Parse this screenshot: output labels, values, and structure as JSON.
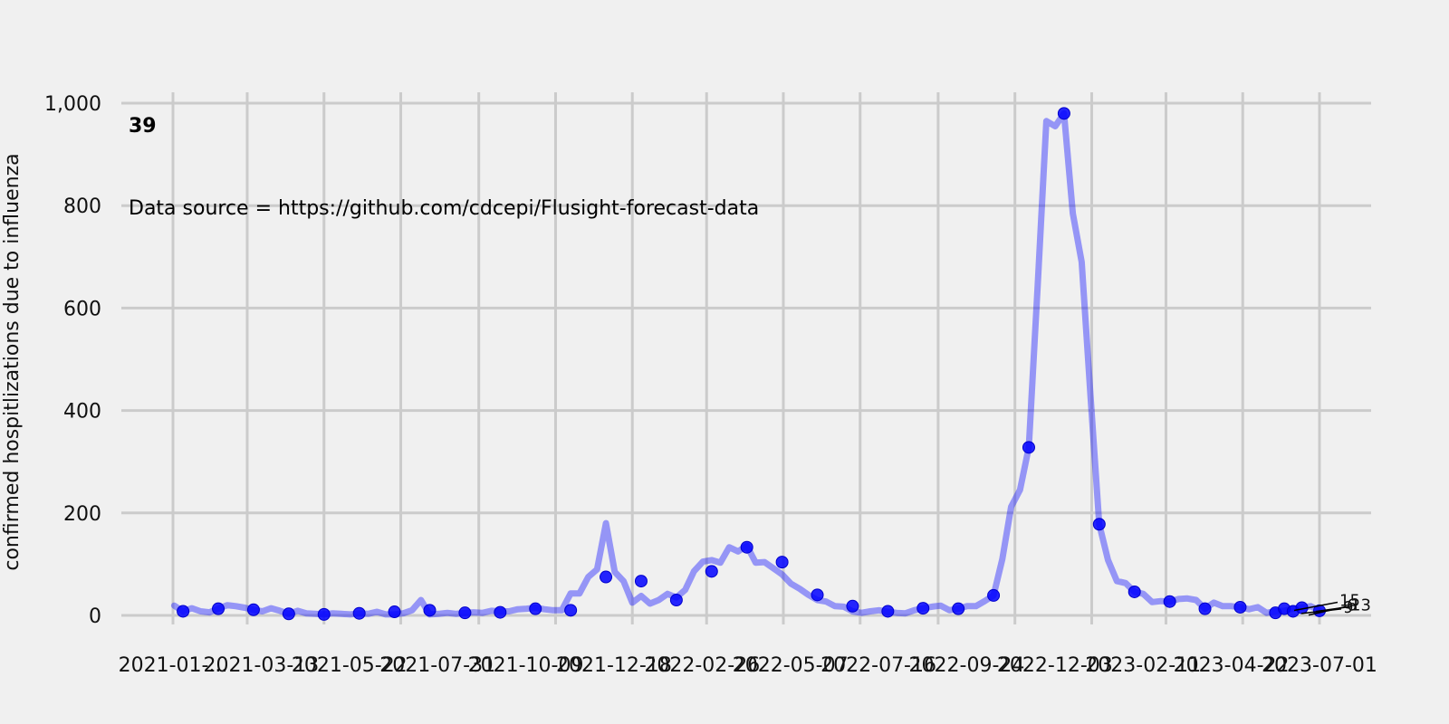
{
  "chart_data": {
    "type": "line",
    "panel_label": "39",
    "source_note": "Data source = https://github.com/cdcepi/Flusight-forecast-data",
    "ylabel": "confirmed hospitlizations due to influenza",
    "xlabel": "",
    "ylim": [
      0,
      1000
    ],
    "yticks": [
      0,
      200,
      400,
      600,
      800,
      1000
    ],
    "ytick_labels": [
      "0",
      "200",
      "400",
      "600",
      "800",
      "1,000"
    ],
    "xticks": [
      "2021-01-01",
      "2021-03-01",
      "2021-05-01",
      "2021-07-01",
      "2021-09-01",
      "2021-11-01",
      "2022-01-01",
      "2022-03-01",
      "2022-05-01",
      "2022-07-01",
      "2022-09-01",
      "2022-11-01",
      "2023-01-01",
      "2023-03-01",
      "2023-05-01",
      "2023-07-01"
    ],
    "xtick_labels": [
      "2021-01",
      "2021-03",
      "2021-05",
      "2021-07",
      "2021-09",
      "2021-11",
      "2022-01",
      "2022-03",
      "2022-05",
      "2022-07",
      "2022-09",
      "2022-11",
      "2023-01",
      "2023-03",
      "2023-05",
      "2023-07"
    ],
    "xtick_display": [
      "2021-01-...",
      "2021-03-13",
      "2021-05-22",
      "2021-07-31",
      "2021-10-09",
      "2021-12-18",
      "2022-02-26",
      "2022-05-07",
      "2022-07-16",
      "2022-09-24",
      "2022-12-03",
      "2023-02-11",
      "2023-04-22",
      "2023-07-01"
    ],
    "grid": true,
    "series": [
      {
        "color": "#0000ff",
        "x": [
          "2021-01-02",
          "2021-01-09",
          "2021-01-16",
          "2021-01-23",
          "2021-01-30",
          "2021-02-06",
          "2021-02-13",
          "2021-02-20",
          "2021-02-27",
          "2021-03-06",
          "2021-03-13",
          "2021-03-20",
          "2021-03-27",
          "2021-04-03",
          "2021-04-10",
          "2021-04-17",
          "2021-04-24",
          "2021-05-01",
          "2021-05-08",
          "2021-05-15",
          "2021-05-22",
          "2021-05-29",
          "2021-06-05",
          "2021-06-12",
          "2021-06-19",
          "2021-06-26",
          "2021-07-03",
          "2021-07-10",
          "2021-07-17",
          "2021-07-24",
          "2021-07-31",
          "2021-08-07",
          "2021-08-14",
          "2021-08-21",
          "2021-08-28",
          "2021-09-04",
          "2021-09-11",
          "2021-09-18",
          "2021-09-25",
          "2021-10-02",
          "2021-10-09",
          "2021-10-16",
          "2021-10-23",
          "2021-10-30",
          "2021-11-06",
          "2021-11-13",
          "2021-11-20",
          "2021-11-27",
          "2021-12-04",
          "2021-12-11",
          "2021-12-18",
          "2021-12-25",
          "2022-01-01",
          "2022-01-08",
          "2022-01-15",
          "2022-01-22",
          "2022-01-29",
          "2022-02-05",
          "2022-02-12",
          "2022-02-19",
          "2022-02-26",
          "2022-03-05",
          "2022-03-12",
          "2022-03-19",
          "2022-03-26",
          "2022-04-02",
          "2022-04-09",
          "2022-04-16",
          "2022-04-23",
          "2022-04-30",
          "2022-05-07",
          "2022-05-14",
          "2022-05-21",
          "2022-05-28",
          "2022-06-04",
          "2022-06-11",
          "2022-06-18",
          "2022-06-25",
          "2022-07-02",
          "2022-07-09",
          "2022-07-16",
          "2022-07-23",
          "2022-07-30",
          "2022-08-06",
          "2022-08-13",
          "2022-08-20",
          "2022-08-27",
          "2022-09-03",
          "2022-09-10",
          "2022-09-17",
          "2022-09-24",
          "2022-10-01",
          "2022-10-08",
          "2022-10-15",
          "2022-10-22",
          "2022-10-29",
          "2022-11-05",
          "2022-11-12",
          "2022-11-19",
          "2022-11-26",
          "2022-12-03",
          "2022-12-10",
          "2022-12-17",
          "2022-12-24",
          "2022-12-31",
          "2023-01-07",
          "2023-01-14",
          "2023-01-21",
          "2023-01-28",
          "2023-02-04",
          "2023-02-11",
          "2023-02-18",
          "2023-02-25",
          "2023-03-04",
          "2023-03-11",
          "2023-03-18",
          "2023-03-25",
          "2023-04-01",
          "2023-04-08",
          "2023-04-15",
          "2023-04-22",
          "2023-04-29",
          "2023-05-06",
          "2023-05-13",
          "2023-05-20",
          "2023-05-27",
          "2023-06-03",
          "2023-06-10",
          "2023-06-17",
          "2023-06-24",
          "2023-07-01"
        ],
        "y": [
          19,
          8,
          14,
          8,
          6,
          13,
          20,
          18,
          15,
          11,
          8,
          14,
          9,
          3,
          9,
          4,
          3,
          2,
          4,
          3,
          2,
          4,
          3,
          7,
          2,
          2,
          4,
          10,
          30,
          2,
          3,
          5,
          3,
          5,
          6,
          5,
          9,
          8,
          8,
          12,
          13,
          15,
          12,
          10,
          10,
          43,
          43,
          75,
          90,
          180,
          85,
          67,
          25,
          38,
          23,
          30,
          42,
          35,
          50,
          86,
          105,
          108,
          103,
          133,
          125,
          136,
          103,
          104,
          92,
          80,
          62,
          52,
          40,
          30,
          27,
          18,
          17,
          8,
          5,
          8,
          10,
          7,
          5,
          4,
          10,
          14,
          17,
          19,
          10,
          13,
          18,
          18,
          28,
          39,
          110,
          212,
          245,
          328,
          640,
          965,
          955,
          980,
          785,
          690,
          430,
          178,
          108,
          67,
          63,
          46,
          42,
          26,
          28,
          27,
          32,
          33,
          30,
          13,
          25,
          18,
          18,
          16,
          12,
          16,
          5,
          8,
          9,
          13,
          15,
          18,
          9
        ],
        "markers": [
          {
            "x": "2021-01-09",
            "y": 8
          },
          {
            "x": "2021-02-06",
            "y": 13
          },
          {
            "x": "2021-03-06",
            "y": 11
          },
          {
            "x": "2021-04-03",
            "y": 3
          },
          {
            "x": "2021-05-01",
            "y": 2
          },
          {
            "x": "2021-05-29",
            "y": 4
          },
          {
            "x": "2021-06-26",
            "y": 7
          },
          {
            "x": "2021-07-24",
            "y": 10
          },
          {
            "x": "2021-08-21",
            "y": 5
          },
          {
            "x": "2021-09-18",
            "y": 6
          },
          {
            "x": "2021-10-16",
            "y": 13
          },
          {
            "x": "2021-11-13",
            "y": 10
          },
          {
            "x": "2021-12-11",
            "y": 75
          },
          {
            "x": "2022-01-08",
            "y": 67
          },
          {
            "x": "2022-02-05",
            "y": 30
          },
          {
            "x": "2022-03-05",
            "y": 86
          },
          {
            "x": "2022-04-02",
            "y": 133
          },
          {
            "x": "2022-04-30",
            "y": 104
          },
          {
            "x": "2022-05-28",
            "y": 40
          },
          {
            "x": "2022-06-25",
            "y": 18
          },
          {
            "x": "2022-07-23",
            "y": 8
          },
          {
            "x": "2022-08-20",
            "y": 14
          },
          {
            "x": "2022-09-17",
            "y": 13
          },
          {
            "x": "2022-10-15",
            "y": 39
          },
          {
            "x": "2022-11-12",
            "y": 328
          },
          {
            "x": "2022-12-10",
            "y": 980
          },
          {
            "x": "2023-01-07",
            "y": 178
          },
          {
            "x": "2023-02-04",
            "y": 46
          },
          {
            "x": "2023-03-04",
            "y": 27
          },
          {
            "x": "2023-04-01",
            "y": 13
          },
          {
            "x": "2023-04-29",
            "y": 16
          },
          {
            "x": "2023-05-27",
            "y": 5
          },
          {
            "x": "2023-06-03",
            "y": 13
          },
          {
            "x": "2023-06-10",
            "y": 8
          },
          {
            "x": "2023-06-17",
            "y": 15
          },
          {
            "x": "2023-07-01",
            "y": 9
          }
        ]
      }
    ],
    "end_annotations": [
      {
        "text": "15",
        "x": "2023-07-01",
        "y": 15
      },
      {
        "text": "9",
        "x": "2023-07-01",
        "y": 9
      },
      {
        "text": "6",
        "x": "2023-07-01",
        "y": 6
      },
      {
        "text": "13",
        "x": "2023-07-01",
        "y": 13
      }
    ]
  }
}
